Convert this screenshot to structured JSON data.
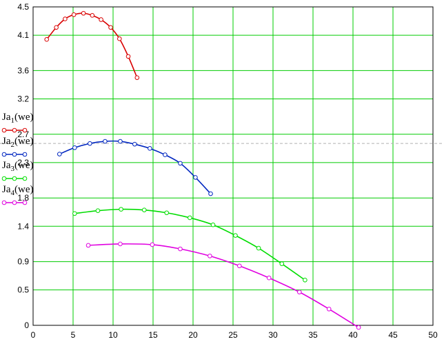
{
  "chart_data": {
    "type": "line",
    "xlim": [
      0,
      50
    ],
    "ylim": [
      0,
      4.5
    ],
    "x_ticks": [
      0,
      5,
      10,
      15,
      20,
      25,
      30,
      35,
      40,
      45,
      50
    ],
    "y_ticks": [
      0,
      0.5,
      0.9,
      1.4,
      1.8,
      2.3,
      2.7,
      3.2,
      3.6,
      4.1,
      4.5
    ],
    "x_tick_labels": [
      "0",
      "5",
      "10",
      "15",
      "20",
      "25",
      "30",
      "35",
      "40",
      "45",
      "50"
    ],
    "y_tick_labels": [
      "0",
      "0.5",
      "0.9",
      "1.4",
      "1.8",
      "2.3",
      "2.7",
      "3.2",
      "3.6",
      "4.1",
      "4.5"
    ],
    "grid": true,
    "reference_line_y": 2.57,
    "legend_placement": "left",
    "series": [
      {
        "name": "Ja1(we)",
        "name_base": "Ja",
        "name_sub": "1",
        "name_tail": "(we)",
        "color": "#d90000",
        "x": [
          1.7,
          2.9,
          4.0,
          5.1,
          6.3,
          7.4,
          8.5,
          9.7,
          10.8,
          11.9,
          13.0
        ],
        "y": [
          4.04,
          4.21,
          4.33,
          4.39,
          4.41,
          4.38,
          4.32,
          4.21,
          4.05,
          3.8,
          3.5
        ]
      },
      {
        "name": "Ja2(we)",
        "name_base": "Ja",
        "name_sub": "2",
        "name_tail": "(we)",
        "color": "#0026c0",
        "x": [
          3.3,
          5.2,
          7.1,
          9.0,
          10.9,
          12.7,
          14.6,
          16.5,
          18.4,
          20.3,
          22.2
        ],
        "y": [
          2.42,
          2.51,
          2.57,
          2.6,
          2.6,
          2.56,
          2.5,
          2.41,
          2.29,
          2.09,
          1.86
        ]
      },
      {
        "name": "Ja3(we)",
        "name_base": "Ja",
        "name_sub": "3",
        "name_tail": "(we)",
        "color": "#00dd00",
        "x": [
          5.2,
          8.1,
          11.0,
          13.9,
          16.7,
          19.6,
          22.5,
          25.3,
          28.2,
          31.1,
          34.0
        ],
        "y": [
          1.58,
          1.62,
          1.64,
          1.63,
          1.59,
          1.52,
          1.42,
          1.27,
          1.09,
          0.87,
          0.64
        ]
      },
      {
        "name": "Ja4(we)",
        "name_base": "Ja",
        "name_sub": "4",
        "name_tail": "(we)",
        "color": "#e000e0",
        "x": [
          6.9,
          10.9,
          14.9,
          18.4,
          22.1,
          25.8,
          29.5,
          33.3,
          37.0,
          40.7
        ],
        "y": [
          1.13,
          1.15,
          1.14,
          1.08,
          0.98,
          0.84,
          0.67,
          0.47,
          0.23,
          -0.03
        ]
      }
    ]
  }
}
